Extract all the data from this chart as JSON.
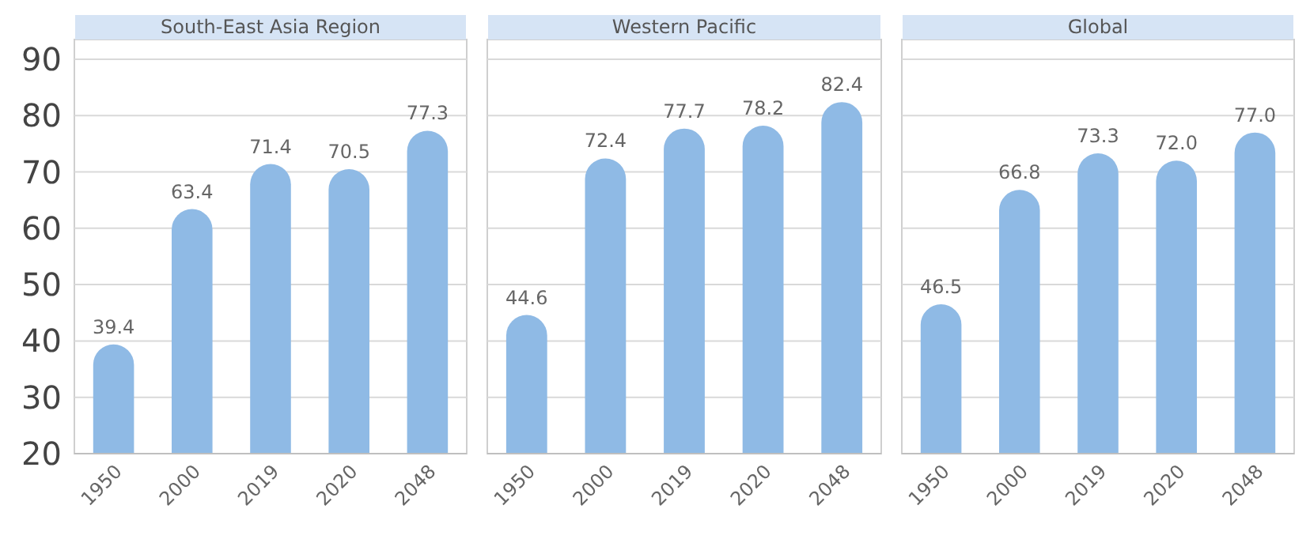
{
  "chart_data": [
    {
      "type": "bar",
      "title": "South-East Asia Region",
      "categories": [
        "1950",
        "2000",
        "2019",
        "2020",
        "2048"
      ],
      "values": [
        39.4,
        63.4,
        71.4,
        70.5,
        77.3
      ],
      "value_labels": [
        "39.4",
        "63.4",
        "71.4",
        "70.5",
        "77.3"
      ],
      "color": "#8fbae5",
      "ylim": [
        20,
        93.5
      ],
      "yticks": [
        20,
        30,
        40,
        50,
        60,
        70,
        80,
        90
      ],
      "grid": "y"
    },
    {
      "type": "bar",
      "title": "Western Pacific",
      "categories": [
        "1950",
        "2000",
        "2019",
        "2020",
        "2048"
      ],
      "values": [
        44.6,
        72.4,
        77.7,
        78.2,
        82.4
      ],
      "value_labels": [
        "44.6",
        "72.4",
        "77.7",
        "78.2",
        "82.4"
      ],
      "color": "#8fbae5",
      "ylim": [
        20,
        93.5
      ],
      "yticks": [
        20,
        30,
        40,
        50,
        60,
        70,
        80,
        90
      ],
      "grid": "y",
      "tick_labels": "x"
    },
    {
      "type": "bar",
      "title": "Global",
      "categories": [
        "1950",
        "2000",
        "2019",
        "2020",
        "2048"
      ],
      "values": [
        46.5,
        66.8,
        73.3,
        72.0,
        77.0
      ],
      "value_labels": [
        "46.5",
        "66.8",
        "73.3",
        "72.0",
        "77.0"
      ],
      "color": "#8fbae5",
      "ylim": [
        20,
        93.5
      ],
      "yticks": [
        20,
        30,
        40,
        50,
        60,
        70,
        80,
        90
      ],
      "grid": "y",
      "tick_labels": "x"
    }
  ]
}
